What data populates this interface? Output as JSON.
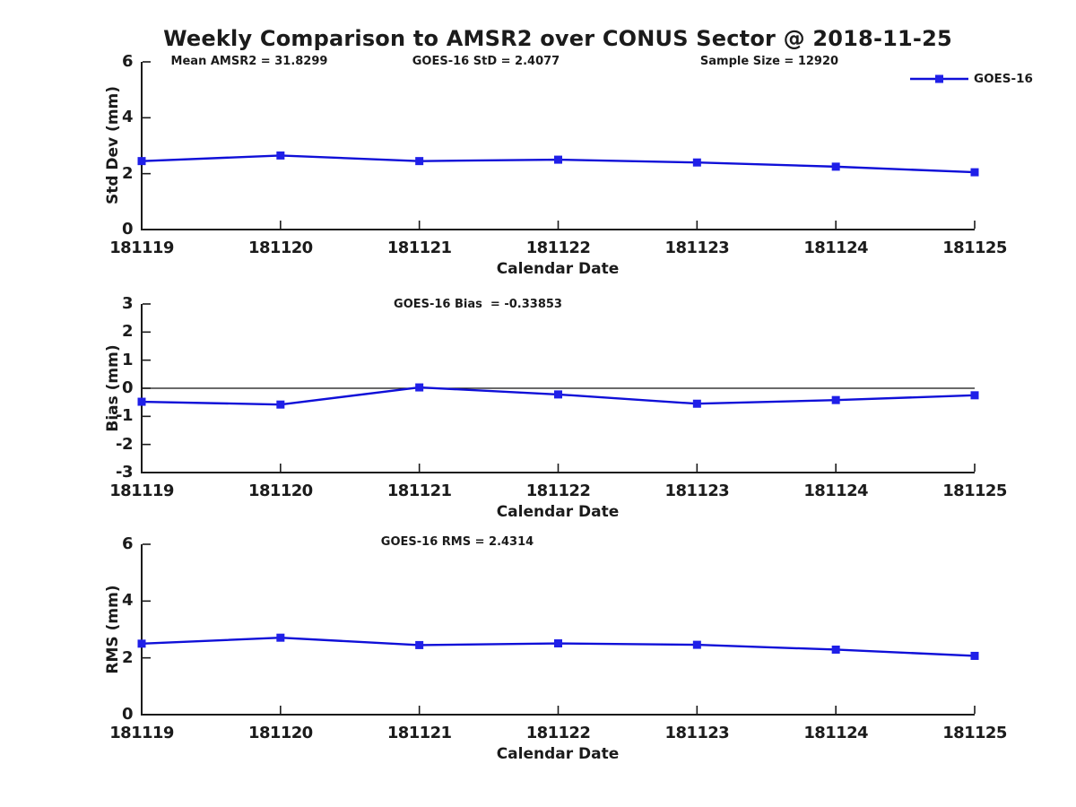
{
  "title": "Weekly Comparison to AMSR2 over CONUS Sector @ 2018-11-25",
  "legend": {
    "label": "GOES-16",
    "position": "top-right"
  },
  "colors": {
    "line": "#0f0fd8",
    "marker": "#1f1fe8",
    "axis": "#1b1b1b",
    "zero_line": "#111111",
    "text": "#1b1b1b",
    "background": "#ffffff"
  },
  "stats": {
    "mean_amsr2": 31.8299,
    "goes16_std": 2.4077,
    "sample_size": 12920,
    "goes16_bias": -0.33853,
    "goes16_rms": 2.4314
  },
  "chart_data": [
    {
      "type": "line",
      "annotations": [
        "Mean AMSR2 = 31.8299",
        "GOES-16 StD = 2.4077",
        "Sample Size = 12920"
      ],
      "ylabel": "Std Dev (mm)",
      "xlabel": "Calendar Date",
      "categories": [
        "181119",
        "181120",
        "181121",
        "181122",
        "181123",
        "181124",
        "181125"
      ],
      "yticks": [
        0,
        2,
        4,
        6
      ],
      "ylim": [
        0,
        6
      ],
      "grid": false,
      "zero_line": false,
      "legend_position": "top-right",
      "series": [
        {
          "name": "GOES-16",
          "values": [
            2.45,
            2.65,
            2.45,
            2.5,
            2.4,
            2.25,
            2.05
          ]
        }
      ]
    },
    {
      "type": "line",
      "annotations": [
        "GOES-16 Bias  = -0.33853"
      ],
      "ylabel": "Bias (mm)",
      "xlabel": "Calendar Date",
      "categories": [
        "181119",
        "181120",
        "181121",
        "181122",
        "181123",
        "181124",
        "181125"
      ],
      "yticks": [
        -3,
        -2,
        -1,
        0,
        1,
        2,
        3
      ],
      "ylim": [
        -3,
        3
      ],
      "grid": false,
      "zero_line": true,
      "series": [
        {
          "name": "GOES-16",
          "values": [
            -0.48,
            -0.58,
            0.03,
            -0.22,
            -0.55,
            -0.42,
            -0.25
          ]
        }
      ]
    },
    {
      "type": "line",
      "annotations": [
        "GOES-16 RMS = 2.4314"
      ],
      "ylabel": "RMS (mm)",
      "xlabel": "Calendar Date",
      "categories": [
        "181119",
        "181120",
        "181121",
        "181122",
        "181123",
        "181124",
        "181125"
      ],
      "yticks": [
        0,
        2,
        4,
        6
      ],
      "ylim": [
        0,
        6
      ],
      "grid": false,
      "zero_line": false,
      "series": [
        {
          "name": "GOES-16",
          "values": [
            2.5,
            2.71,
            2.45,
            2.51,
            2.46,
            2.29,
            2.07
          ]
        }
      ]
    }
  ]
}
